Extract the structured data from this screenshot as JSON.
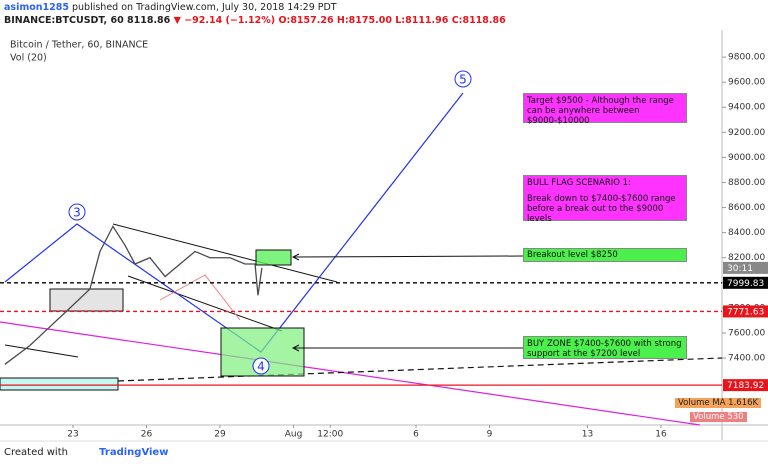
{
  "header": {
    "author": "asimon1285",
    "published": "published on TradingView.com, July 30, 2018 14:29 PDT",
    "symbol": "BINANCE:BTCUSDT, 60",
    "last": "8118.86",
    "change": "▼ −92.14 (−1.12%)",
    "open": "O:8157.26",
    "high": "H:8175.00",
    "low": "L:8111.96",
    "close": "C:8118.86"
  },
  "chart_data": {
    "type": "line",
    "title": "Bitcoin / Tether, 60, BINANCE",
    "subtitle": "Vol (20)",
    "x": [
      -2.78,
      -1.76,
      -0.94,
      -0.12,
      0.69,
      1.1,
      1.63,
      2.12,
      2.53,
      3.14,
      3.76,
      4.37,
      4.98,
      5.59,
      6.41,
      7.02,
      7.43,
      7.55,
      7.71
    ],
    "series": [
      {
        "name": "BTCUSDT",
        "color": "#4a4a4a",
        "values": [
          7350,
          7500,
          7650,
          7800,
          7950,
          8250,
          8450,
          8300,
          8150,
          8200,
          8050,
          8150,
          8250,
          8200,
          8200,
          8150,
          8150,
          7900,
          8118.86
        ]
      }
    ],
    "xlim": [
      -2.98,
      26.49
    ],
    "ylim": [
      6866,
      10000
    ],
    "xticks": [
      {
        "value": 0,
        "label": "23"
      },
      {
        "value": 3,
        "label": "26"
      },
      {
        "value": 6,
        "label": "29"
      },
      {
        "value": 9,
        "label": "Aug"
      },
      {
        "value": 10.5,
        "label": "12:00"
      },
      {
        "value": 14,
        "label": "6"
      },
      {
        "value": 17,
        "label": "9"
      },
      {
        "value": 21,
        "label": "13"
      },
      {
        "value": 24,
        "label": "16"
      }
    ],
    "yticks": [
      {
        "value": 7400,
        "label": "7400.00"
      },
      {
        "value": 7600,
        "label": "7600.00"
      },
      {
        "value": 7800,
        "label": "7800.00"
      },
      {
        "value": 8000,
        "label": "8000.00"
      },
      {
        "value": 8200,
        "label": "8200.00"
      },
      {
        "value": 8400,
        "label": "8400.00"
      },
      {
        "value": 8600,
        "label": "8600.00"
      },
      {
        "value": 8800,
        "label": "8800.00"
      },
      {
        "value": 9000,
        "label": "9000.00"
      },
      {
        "value": 9200,
        "label": "9200.00"
      },
      {
        "value": 9400,
        "label": "9400.00"
      },
      {
        "value": 9600,
        "label": "9600.00"
      },
      {
        "value": 9800,
        "label": "9800.00"
      }
    ],
    "grid": false,
    "countdown": "30:11",
    "price_lines": [
      {
        "value": 7999.83,
        "color": "#000000",
        "dashed": true
      },
      {
        "value": 7771.63,
        "color": "#e8141c",
        "dashed": true
      },
      {
        "value": 7183.92,
        "color": "#e8141c",
        "dashed": false
      }
    ],
    "waves": [
      "3",
      "4",
      "5"
    ]
  },
  "annotations": [
    {
      "text": "Target $9500 - Although the range can be anywhere between $9000-$10000"
    },
    {
      "lines": [
        "BULL FLAG SCENARIO 1:",
        "Break down to $7400-$7600 range before a break out to the $9000 levels"
      ]
    },
    {
      "text": "Breakout level $8250"
    },
    {
      "text": "BUY ZONE $7400-$7600 with strong support at the $7200 level"
    }
  ],
  "volume": {
    "ma_label": "Volume MA",
    "ma_value": "1.616K",
    "label": "Volume",
    "value": 530
  },
  "footer": {
    "prefix": "Created with",
    "brand": "TradingView"
  }
}
